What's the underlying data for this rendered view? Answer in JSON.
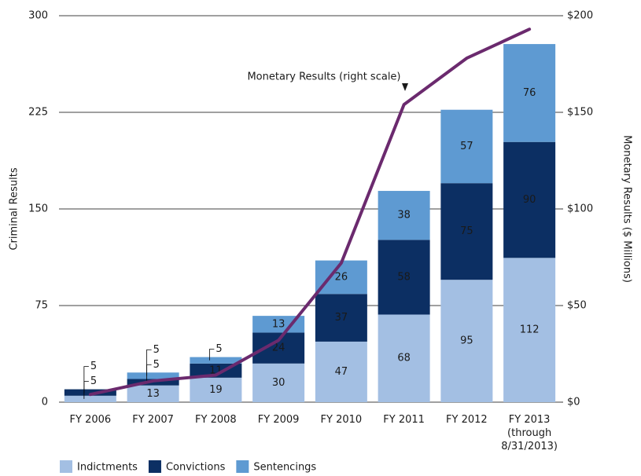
{
  "chart_data": {
    "type": "bar",
    "categories": [
      "FY 2006",
      "FY 2007",
      "FY 2008",
      "FY 2009",
      "FY 2010",
      "FY 2011",
      "FY 2012",
      "FY 2013\n(through\n8/31/2013)"
    ],
    "series": [
      {
        "name": "Indictments",
        "color": "#a3bfe3",
        "values": [
          5,
          13,
          19,
          30,
          47,
          68,
          95,
          112
        ]
      },
      {
        "name": "Convictions",
        "color": "#0c2f63",
        "values": [
          5,
          5,
          11,
          24,
          37,
          58,
          75,
          90
        ]
      },
      {
        "name": "Sentencings",
        "color": "#5e9ad2",
        "values": [
          null,
          5,
          5,
          13,
          26,
          38,
          57,
          76
        ]
      },
      {
        "name": "Monetary Results (right scale)",
        "color": "#6b2a6e",
        "axis": "y2",
        "type": "line",
        "values": [
          4,
          11,
          14,
          32,
          72,
          154,
          178,
          193
        ]
      }
    ],
    "ylabel": "Criminal Results",
    "y2label": "Monetary Results ($ Millions)",
    "ylim": [
      0,
      300
    ],
    "yticks": [
      0,
      75,
      150,
      225,
      300
    ],
    "y2lim": [
      0,
      200
    ],
    "y2ticks": [
      {
        "value": 0,
        "label": "$0"
      },
      {
        "value": 50,
        "label": "$50"
      },
      {
        "value": 100,
        "label": "$100"
      },
      {
        "value": 150,
        "label": "$150"
      },
      {
        "value": 200,
        "label": "$200"
      }
    ],
    "grid": true,
    "stacked": true,
    "legend": "bottom-left"
  }
}
